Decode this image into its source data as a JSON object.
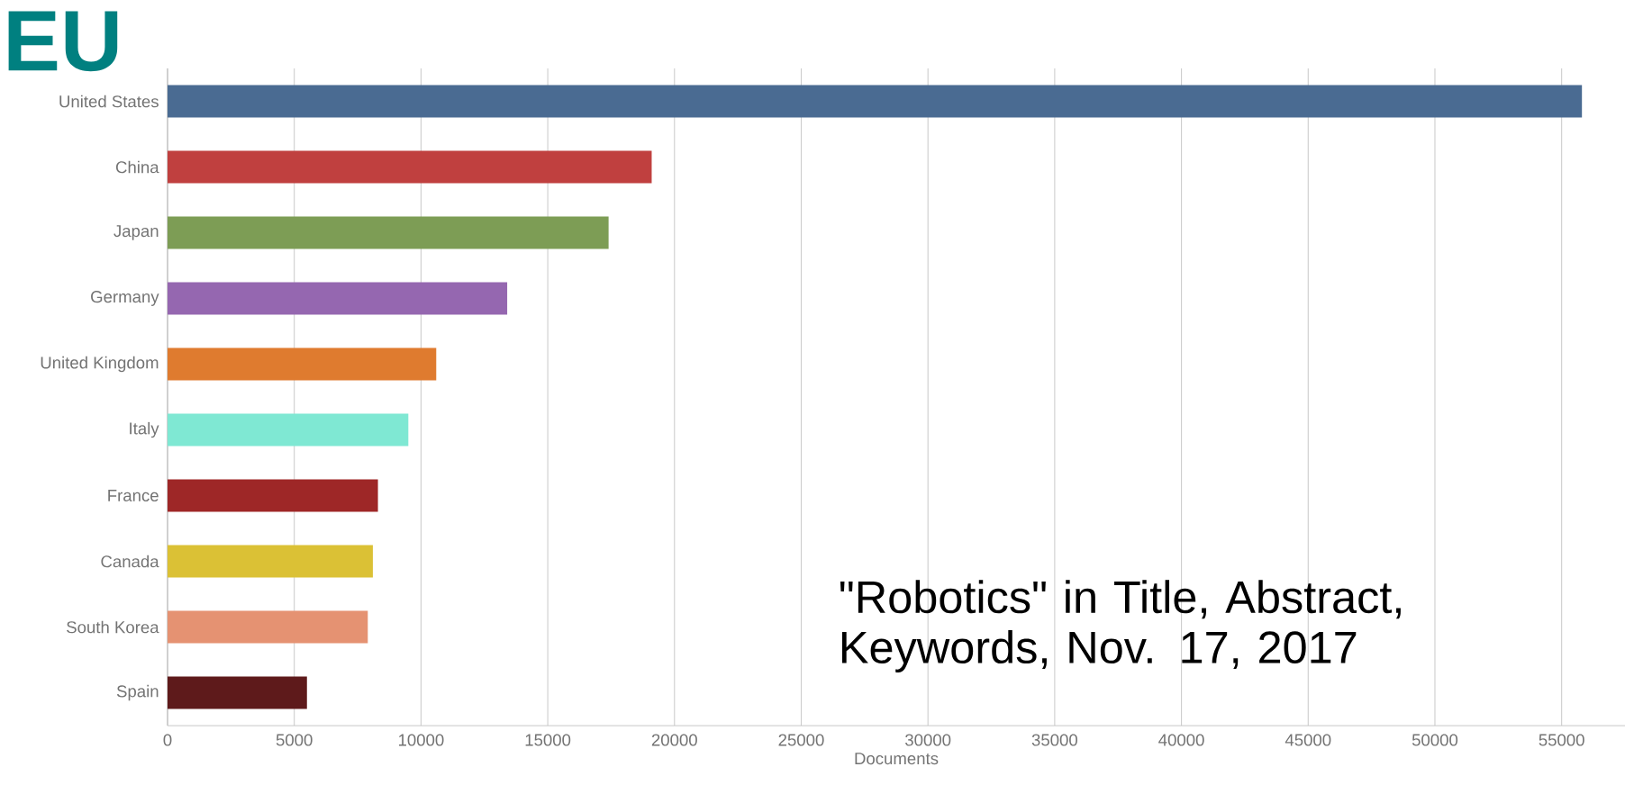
{
  "chart_data": {
    "type": "bar",
    "orientation": "horizontal",
    "title": "EU",
    "xlabel": "Documents",
    "categories": [
      "United States",
      "China",
      "Japan",
      "Germany",
      "United Kingdom",
      "Italy",
      "France",
      "Canada",
      "South Korea",
      "Spain"
    ],
    "values": [
      55800,
      19100,
      17400,
      13400,
      10600,
      9500,
      8300,
      8100,
      7900,
      5500
    ],
    "colors": [
      "#4a6b92",
      "#c0403f",
      "#7d9d55",
      "#9567b0",
      "#df7b2f",
      "#7fe8d3",
      "#9e2727",
      "#dbc135",
      "#e59272",
      "#5e1a1b"
    ],
    "xlim": [
      0,
      57500
    ],
    "xticks": [
      0,
      5000,
      10000,
      15000,
      20000,
      25000,
      30000,
      35000,
      40000,
      45000,
      50000,
      55000
    ],
    "grid": "x",
    "annotations": [
      "\"Robotics\" in Title, Abstract, Keywords, Nov. 17, 2017"
    ]
  }
}
